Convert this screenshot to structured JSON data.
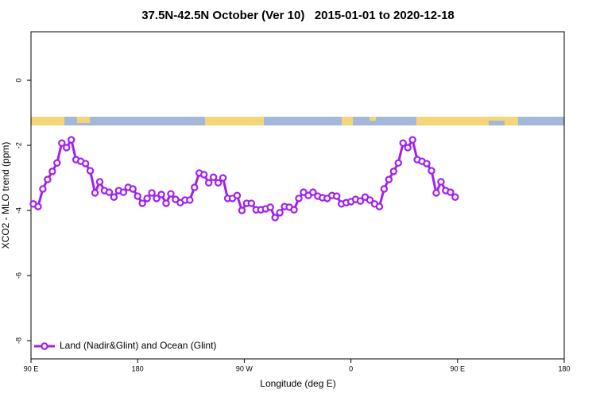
{
  "chart_data": {
    "type": "line",
    "title": "37.5N-42.5N October (Ver 10)   2015-01-01 to 2020-12-18",
    "x_label": "Longitude (deg E)",
    "y_label": "XCO2 - MLO trend (ppm)",
    "xlim": [
      90,
      540
    ],
    "ylim": [
      -8.56,
      1.49
    ],
    "xticks": [
      {
        "value": 90,
        "label": "90 E"
      },
      180,
      {
        "value": 270,
        "label": "90 W"
      },
      {
        "value": 360,
        "label": "0"
      },
      {
        "value": 450,
        "label": "90 E"
      },
      {
        "value": 540,
        "label": "180"
      }
    ],
    "yticks": [
      0,
      -2,
      -4,
      -6,
      -8
    ],
    "legend": "bottomleft",
    "x": [
      92,
      96,
      100,
      104,
      108,
      112,
      116,
      120,
      124,
      128,
      132,
      136,
      140,
      144,
      148,
      152,
      156,
      160,
      164,
      168,
      172,
      176,
      180,
      184,
      188,
      192,
      196,
      200,
      204,
      208,
      212,
      216,
      220,
      224,
      228,
      232,
      236,
      240,
      244,
      248,
      252,
      256,
      260,
      264,
      268,
      272,
      276,
      280,
      284,
      288,
      292,
      296,
      300,
      304,
      308,
      312,
      316,
      320,
      324,
      328,
      332,
      336,
      340,
      344,
      348,
      352,
      356,
      360,
      364,
      368,
      372,
      376,
      380,
      384,
      388,
      392,
      396,
      400,
      404,
      408,
      412,
      416,
      420,
      424,
      428,
      432,
      436,
      440,
      444,
      448
    ],
    "series": [
      {
        "name": "Land (Nadir&Glint) and Ocean (Glint)",
        "color": "#a020f0",
        "values": [
          -3.8,
          -3.88,
          -3.34,
          -3.05,
          -2.8,
          -2.54,
          -1.93,
          -2.07,
          -1.83,
          -2.44,
          -2.49,
          -2.56,
          -2.78,
          -3.46,
          -3.12,
          -3.39,
          -3.44,
          -3.59,
          -3.39,
          -3.44,
          -3.29,
          -3.34,
          -3.56,
          -3.78,
          -3.63,
          -3.46,
          -3.63,
          -3.51,
          -3.78,
          -3.49,
          -3.66,
          -3.76,
          -3.68,
          -3.68,
          -3.29,
          -2.85,
          -2.9,
          -3.15,
          -2.98,
          -3.15,
          -3.0,
          -3.63,
          -3.63,
          -3.54,
          -4.0,
          -3.78,
          -3.78,
          -3.98,
          -3.98,
          -3.95,
          -3.9,
          -4.22,
          -4.07,
          -3.88,
          -3.9,
          -3.98,
          -3.63,
          -3.44,
          -3.54,
          -3.44,
          -3.56,
          -3.61,
          -3.63,
          -3.54,
          -3.56,
          -3.8,
          -3.76,
          -3.73,
          -3.66,
          -3.71,
          -3.59,
          -3.68,
          -3.8,
          -3.88,
          -3.34,
          -3.05,
          -2.8,
          -2.54,
          -1.93,
          -2.07,
          -1.83,
          -2.44,
          -2.49,
          -2.56,
          -2.78,
          -3.46,
          -3.12,
          -3.39,
          -3.44,
          -3.59
        ]
      }
    ]
  }
}
